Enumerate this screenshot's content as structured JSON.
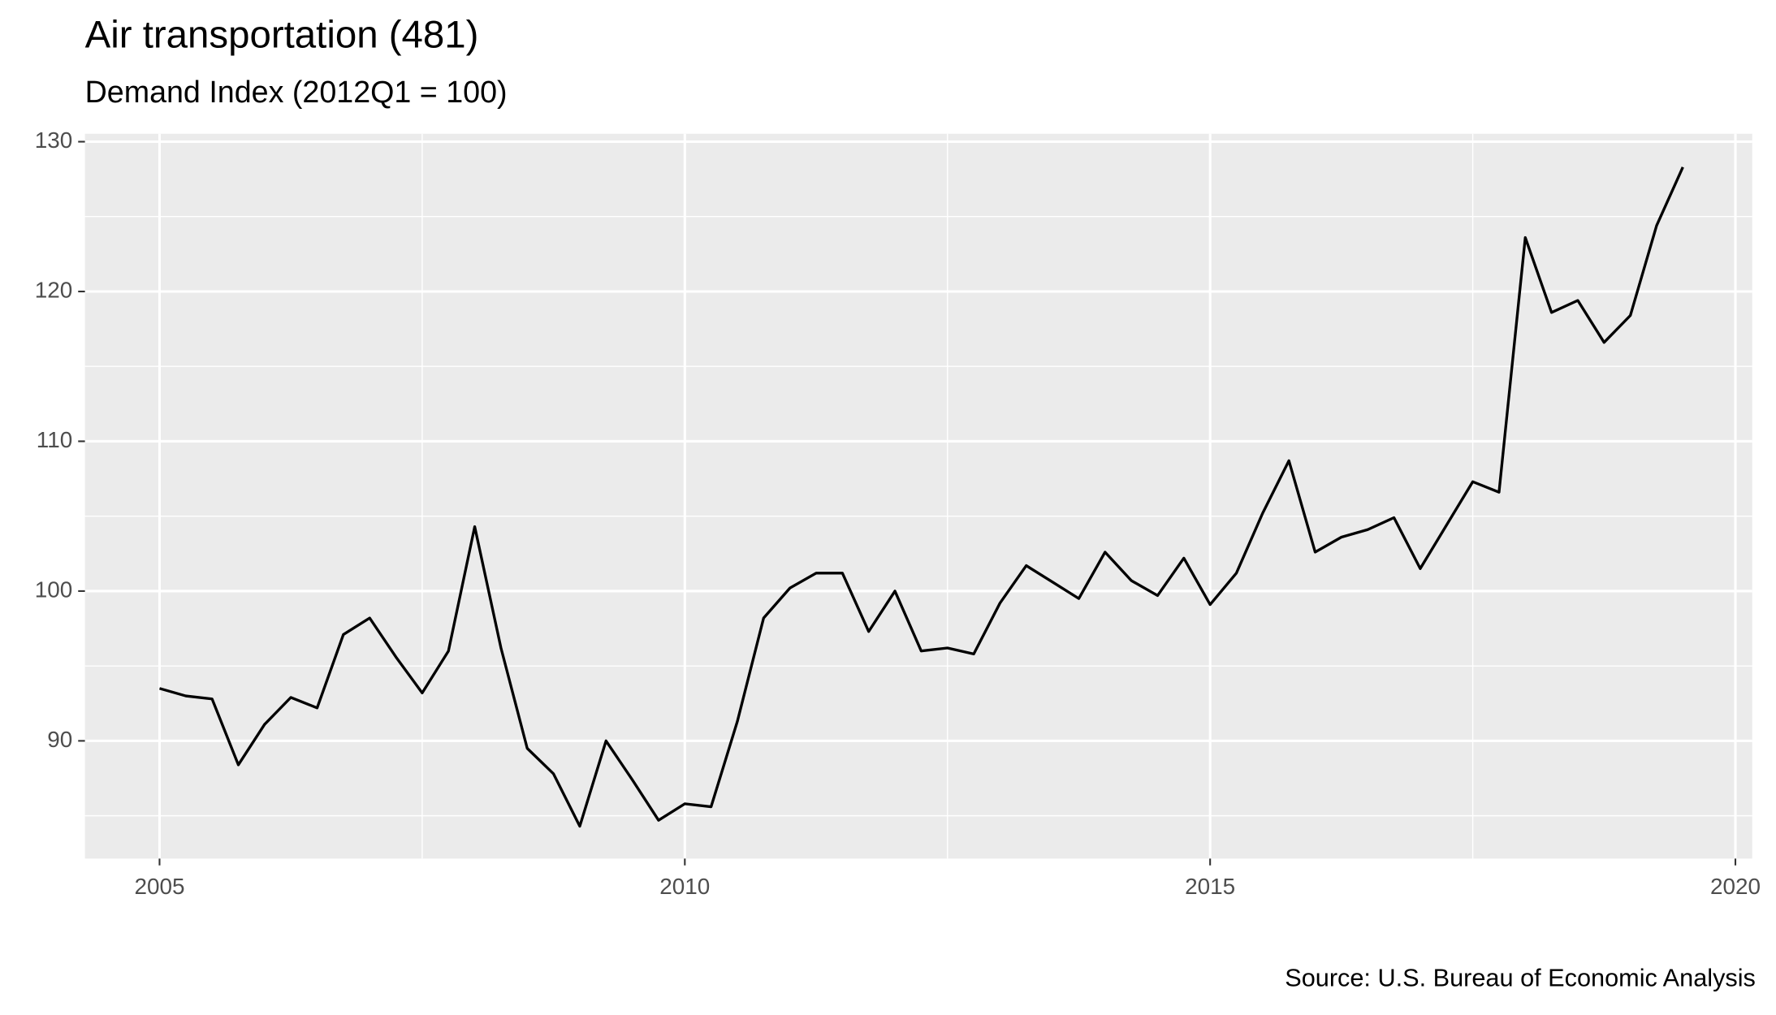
{
  "chart_data": {
    "type": "line",
    "title": "Air transportation (481)",
    "subtitle": "Demand Index (2012Q1 = 100)",
    "caption": "Source: U.S. Bureau of Economic Analysis",
    "x": [
      2005,
      2005.25,
      2005.5,
      2005.75,
      2006,
      2006.25,
      2006.5,
      2006.75,
      2007,
      2007.25,
      2007.5,
      2007.75,
      2008,
      2008.25,
      2008.5,
      2008.75,
      2009,
      2009.25,
      2009.5,
      2009.75,
      2010,
      2010.25,
      2010.5,
      2010.75,
      2011,
      2011.25,
      2011.5,
      2011.75,
      2012,
      2012.25,
      2012.5,
      2012.75,
      2013,
      2013.25,
      2013.5,
      2013.75,
      2014,
      2014.25,
      2014.5,
      2014.75,
      2015,
      2015.25,
      2015.5,
      2015.75,
      2016,
      2016.25,
      2016.5,
      2016.75,
      2017,
      2017.25,
      2017.5,
      2017.75,
      2018,
      2018.25,
      2018.5,
      2018.75,
      2019,
      2019.25,
      2019.5
    ],
    "series": [
      {
        "name": "Demand Index",
        "color": "#000000",
        "values": [
          93.5,
          93.0,
          92.8,
          88.4,
          91.1,
          92.9,
          92.2,
          97.1,
          98.2,
          95.6,
          93.2,
          96.0,
          104.3,
          96.2,
          89.5,
          87.8,
          84.3,
          90.0,
          87.4,
          84.7,
          85.8,
          85.6,
          91.3,
          98.2,
          100.2,
          101.2,
          101.2,
          97.3,
          100.0,
          96.0,
          96.2,
          95.8,
          99.2,
          101.7,
          100.6,
          99.5,
          102.6,
          100.7,
          99.7,
          102.2,
          99.1,
          101.2,
          105.2,
          108.7,
          102.6,
          103.6,
          104.1,
          104.9,
          101.5,
          104.4,
          107.3,
          106.6,
          123.6,
          118.6,
          119.4,
          116.6,
          118.4,
          124.4,
          128.3
        ]
      }
    ],
    "xlim": [
      2004.29,
      2020.16
    ],
    "xticks": [
      2005,
      2010,
      2015,
      2020
    ],
    "ylim": [
      82.14,
      130.53
    ],
    "yticks": [
      90,
      100,
      110,
      120,
      130
    ],
    "grid": true
  }
}
